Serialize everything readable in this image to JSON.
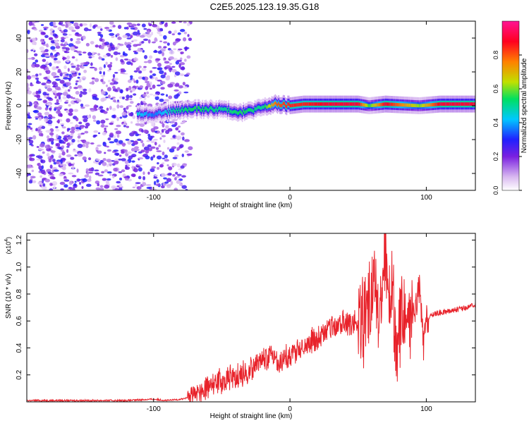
{
  "title": "C2E5.2025.123.19.35.G18",
  "chart_data": [
    {
      "type": "heatmap",
      "xlabel": "Height of straight line (km)",
      "ylabel": "Frequency (Hz)",
      "xlim": [
        -193,
        136
      ],
      "ylim": [
        -50,
        50
      ],
      "x_ticks": [
        -100,
        0,
        100
      ],
      "y_ticks": [
        -40,
        -20,
        0,
        20,
        40
      ],
      "x_tick_labels": [
        "-100",
        "0",
        "100"
      ],
      "y_tick_labels": [
        "-40",
        "-20",
        "0",
        "20",
        "40"
      ],
      "colorbar": {
        "label": "Normalized spectral amplitude",
        "range": [
          0,
          1
        ],
        "ticks": [
          "0.0",
          "0.2",
          "0.4",
          "0.6",
          "0.8"
        ],
        "tick_values": [
          0.0,
          0.2,
          0.4,
          0.6,
          0.8
        ],
        "colors": [
          "#ffffff",
          "#d8b8f0",
          "#7a20e0",
          "#2020ff",
          "#00c8ff",
          "#00e060",
          "#c0e000",
          "#ff8000",
          "#ff0020",
          "#ff1493"
        ]
      },
      "ridge": [
        {
          "x": -112,
          "y": -5,
          "amp": 0.45
        },
        {
          "x": -100,
          "y": -5,
          "amp": 0.35
        },
        {
          "x": -85,
          "y": -3,
          "amp": 0.5
        },
        {
          "x": -70,
          "y": -2,
          "amp": 0.55
        },
        {
          "x": -50,
          "y": -2,
          "amp": 0.5
        },
        {
          "x": -35,
          "y": -4,
          "amp": 0.55
        },
        {
          "x": -20,
          "y": -1,
          "amp": 0.5
        },
        {
          "x": -10,
          "y": 1,
          "amp": 0.8
        },
        {
          "x": 0,
          "y": 0,
          "amp": 0.85
        },
        {
          "x": 10,
          "y": 1,
          "amp": 0.85
        },
        {
          "x": 30,
          "y": 1,
          "amp": 0.9
        },
        {
          "x": 50,
          "y": 1,
          "amp": 0.9
        },
        {
          "x": 58,
          "y": 0,
          "amp": 0.55
        },
        {
          "x": 70,
          "y": 1,
          "amp": 0.9
        },
        {
          "x": 95,
          "y": 0,
          "amp": 0.6
        },
        {
          "x": 110,
          "y": 1,
          "amp": 0.9
        },
        {
          "x": 136,
          "y": 1,
          "amp": 0.9
        }
      ],
      "noise_region": {
        "x_from": -193,
        "x_to": -75,
        "y_from": -50,
        "y_to": 50,
        "amp_range": [
          0.1,
          0.3
        ]
      }
    },
    {
      "type": "line",
      "xlabel": "Height of straight line (km)",
      "ylabel": "SNR (10 * v/v)",
      "y_scale_label": "(x10",
      "y_scale_exp": "4",
      "y_scale_close": ")",
      "xlim": [
        -193,
        136
      ],
      "ylim": [
        0,
        1.25
      ],
      "x_ticks": [
        -100,
        0,
        100
      ],
      "y_ticks": [
        0.2,
        0.4,
        0.6,
        0.8,
        1.0,
        1.2
      ],
      "x_tick_labels": [
        "-100",
        "0",
        "100"
      ],
      "y_tick_labels": [
        "0.2",
        "0.4",
        "0.6",
        "0.8",
        "1.0",
        "1.2"
      ],
      "color": "#e8222a",
      "series": [
        {
          "x": [
            -193,
            -180,
            -160,
            -140,
            -120,
            -100,
            -90,
            -80,
            -75,
            -68,
            -60,
            -52,
            -45,
            -38,
            -30,
            -22,
            -15,
            -8,
            0,
            5,
            10,
            20,
            30,
            40,
            50,
            55,
            58,
            60,
            62,
            65,
            68,
            70,
            72,
            75,
            78,
            80,
            85,
            90,
            95,
            98,
            100,
            105,
            110,
            120,
            130,
            136
          ],
          "y": [
            0.01,
            0.01,
            0.01,
            0.01,
            0.01,
            0.02,
            0.01,
            0.02,
            0.03,
            0.06,
            0.12,
            0.15,
            0.18,
            0.2,
            0.22,
            0.3,
            0.35,
            0.28,
            0.35,
            0.38,
            0.42,
            0.48,
            0.55,
            0.58,
            0.6,
            0.62,
            0.7,
            0.8,
            1.1,
            0.65,
            0.9,
            1.25,
            0.6,
            0.9,
            0.4,
            0.55,
            0.58,
            0.6,
            0.85,
            0.4,
            0.6,
            0.65,
            0.66,
            0.68,
            0.7,
            0.72
          ]
        }
      ]
    }
  ]
}
